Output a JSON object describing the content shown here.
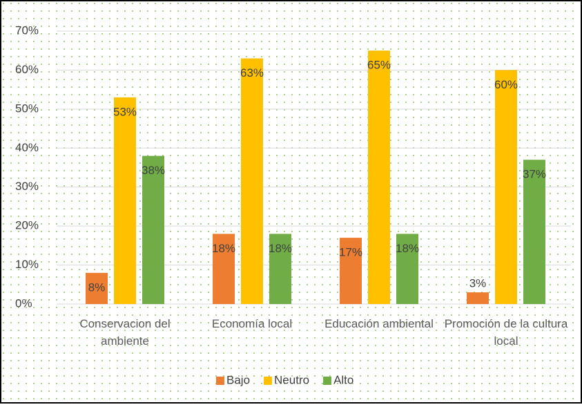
{
  "chart_data": {
    "type": "bar",
    "categories": [
      "Conservacion del ambiente",
      "Economía local",
      "Educación ambiental",
      "Promoción de la cultura local"
    ],
    "series": [
      {
        "name": "Bajo",
        "color": "#ed7d31",
        "values": [
          8,
          18,
          17,
          3
        ],
        "value_labels": [
          "8%",
          "18%",
          "17%",
          "3%"
        ]
      },
      {
        "name": "Neutro",
        "color": "#ffc000",
        "values": [
          53,
          63,
          65,
          60
        ],
        "value_labels": [
          "53%",
          "63%",
          "65%",
          "60%"
        ]
      },
      {
        "name": "Alto",
        "color": "#70ad47",
        "values": [
          38,
          18,
          18,
          37
        ],
        "value_labels": [
          "38%",
          "18%",
          "18%",
          "37%"
        ]
      }
    ],
    "ylim": [
      0,
      70
    ],
    "yticks": [
      {
        "value": 0,
        "label": "0%"
      },
      {
        "value": 10,
        "label": "10%"
      },
      {
        "value": 20,
        "label": "20%"
      },
      {
        "value": 30,
        "label": "30%"
      },
      {
        "value": 40,
        "label": "40%"
      },
      {
        "value": 50,
        "label": "50%"
      },
      {
        "value": 60,
        "label": "60%"
      },
      {
        "value": 70,
        "label": "70%"
      }
    ],
    "grid": true,
    "legend": "bottom"
  }
}
